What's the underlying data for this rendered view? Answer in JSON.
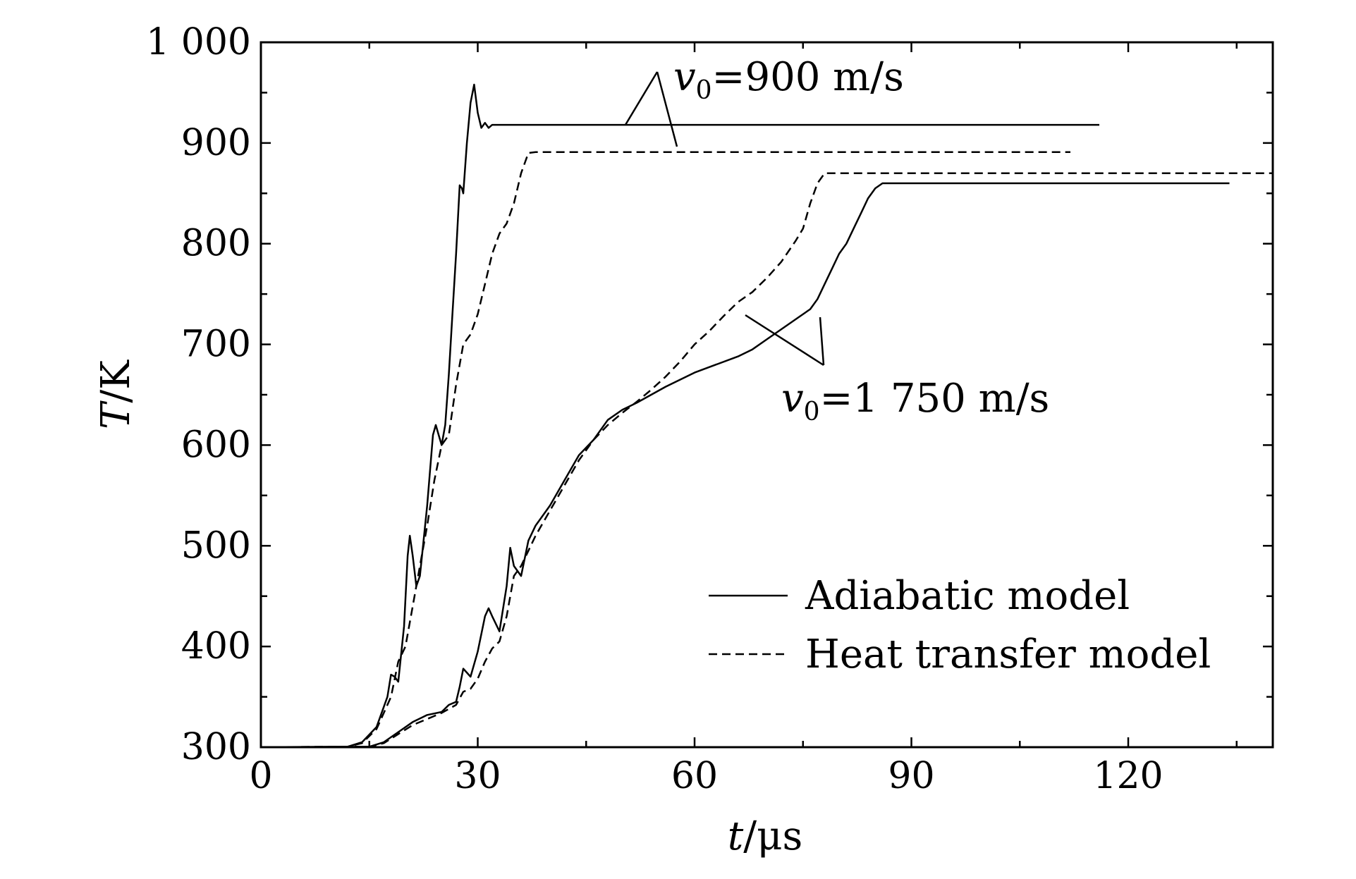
{
  "chart_data": {
    "type": "line",
    "xlabel": {
      "var": "t",
      "unit": "μs"
    },
    "ylabel": {
      "var": "T",
      "unit": "K"
    },
    "xlim": [
      0,
      140
    ],
    "ylim": [
      300,
      1000
    ],
    "x_ticks": [
      {
        "value": 0,
        "label": "0"
      },
      {
        "value": 30,
        "label": "30"
      },
      {
        "value": 60,
        "label": "60"
      },
      {
        "value": 90,
        "label": "90"
      },
      {
        "value": 120,
        "label": "120"
      }
    ],
    "y_ticks": [
      {
        "value": 300,
        "label": "300"
      },
      {
        "value": 400,
        "label": "400"
      },
      {
        "value": 500,
        "label": "500"
      },
      {
        "value": 600,
        "label": "600"
      },
      {
        "value": 700,
        "label": "700"
      },
      {
        "value": 800,
        "label": "800"
      },
      {
        "value": 900,
        "label": "900"
      },
      {
        "value": 1000,
        "label": "1 000"
      }
    ],
    "grid": false,
    "legend": {
      "position": "bottom-right",
      "entries": [
        {
          "label": "Adiabatic model",
          "style": "solid"
        },
        {
          "label": "Heat transfer model",
          "style": "dashed"
        }
      ]
    },
    "annotations": [
      {
        "var": "v",
        "sub": "0",
        "text": "=900 m/s"
      },
      {
        "var": "v",
        "sub": "0",
        "text": "=1 750 m/s"
      }
    ],
    "series": [
      {
        "group": 0,
        "style": "solid",
        "points": [
          [
            0,
            300
          ],
          [
            12,
            300.5
          ],
          [
            14,
            305
          ],
          [
            16,
            320
          ],
          [
            17.5,
            350
          ],
          [
            18,
            372
          ],
          [
            18.5,
            370
          ],
          [
            19,
            365
          ],
          [
            19.8,
            420
          ],
          [
            20.3,
            490
          ],
          [
            20.6,
            510
          ],
          [
            21,
            490
          ],
          [
            21.5,
            460
          ],
          [
            22,
            470
          ],
          [
            23,
            540
          ],
          [
            23.8,
            610
          ],
          [
            24.2,
            620
          ],
          [
            24.6,
            610
          ],
          [
            25,
            600
          ],
          [
            25.5,
            620
          ],
          [
            26,
            670
          ],
          [
            26.5,
            730
          ],
          [
            27,
            790
          ],
          [
            27.5,
            858
          ],
          [
            27.8,
            855
          ],
          [
            28,
            850
          ],
          [
            28.5,
            900
          ],
          [
            29,
            940
          ],
          [
            29.5,
            958
          ],
          [
            30,
            930
          ],
          [
            30.5,
            915
          ],
          [
            31,
            920
          ],
          [
            31.5,
            915
          ],
          [
            32,
            918
          ],
          [
            40,
            918
          ],
          [
            116,
            918
          ]
        ]
      },
      {
        "group": 0,
        "style": "dashed",
        "points": [
          [
            0,
            300
          ],
          [
            12,
            300.5
          ],
          [
            14,
            304
          ],
          [
            16,
            318
          ],
          [
            18,
            350
          ],
          [
            19,
            385
          ],
          [
            20,
            400
          ],
          [
            21,
            440
          ],
          [
            22,
            480
          ],
          [
            23,
            520
          ],
          [
            24,
            565
          ],
          [
            25,
            600
          ],
          [
            26,
            610
          ],
          [
            27,
            660
          ],
          [
            28,
            700
          ],
          [
            29,
            710
          ],
          [
            30,
            730
          ],
          [
            31,
            760
          ],
          [
            32,
            790
          ],
          [
            33,
            810
          ],
          [
            34,
            820
          ],
          [
            35,
            840
          ],
          [
            36,
            870
          ],
          [
            37,
            890
          ],
          [
            38,
            891
          ],
          [
            40,
            891
          ],
          [
            112,
            891
          ]
        ]
      },
      {
        "group": 1,
        "style": "solid",
        "points": [
          [
            0,
            300
          ],
          [
            15,
            300.5
          ],
          [
            17,
            305
          ],
          [
            19,
            315
          ],
          [
            21,
            325
          ],
          [
            23,
            332
          ],
          [
            25,
            335
          ],
          [
            26,
            342
          ],
          [
            27,
            345
          ],
          [
            27.5,
            360
          ],
          [
            28,
            378
          ],
          [
            29,
            370
          ],
          [
            30,
            395
          ],
          [
            31,
            430
          ],
          [
            31.5,
            438
          ],
          [
            32,
            430
          ],
          [
            33,
            415
          ],
          [
            34,
            460
          ],
          [
            34.5,
            498
          ],
          [
            35,
            480
          ],
          [
            36,
            470
          ],
          [
            37,
            505
          ],
          [
            38,
            520
          ],
          [
            40,
            540
          ],
          [
            42,
            565
          ],
          [
            44,
            590
          ],
          [
            46,
            605
          ],
          [
            48,
            625
          ],
          [
            50,
            635
          ],
          [
            52,
            642
          ],
          [
            54,
            650
          ],
          [
            56,
            658
          ],
          [
            58,
            665
          ],
          [
            60,
            672
          ],
          [
            63,
            680
          ],
          [
            66,
            688
          ],
          [
            68,
            695
          ],
          [
            70,
            705
          ],
          [
            72,
            715
          ],
          [
            74,
            725
          ],
          [
            76,
            735
          ],
          [
            77,
            745
          ],
          [
            78,
            760
          ],
          [
            79,
            775
          ],
          [
            80,
            790
          ],
          [
            81,
            800
          ],
          [
            82,
            815
          ],
          [
            83,
            830
          ],
          [
            84,
            845
          ],
          [
            85,
            855
          ],
          [
            86,
            860
          ],
          [
            88,
            860
          ],
          [
            134,
            860
          ]
        ]
      },
      {
        "group": 1,
        "style": "dashed",
        "points": [
          [
            0,
            300
          ],
          [
            15,
            300.5
          ],
          [
            17,
            304
          ],
          [
            19,
            313
          ],
          [
            21,
            322
          ],
          [
            23,
            328
          ],
          [
            25,
            334
          ],
          [
            27,
            342
          ],
          [
            28,
            355
          ],
          [
            29,
            358
          ],
          [
            30,
            368
          ],
          [
            31,
            385
          ],
          [
            32,
            398
          ],
          [
            33,
            405
          ],
          [
            34,
            430
          ],
          [
            35,
            470
          ],
          [
            36,
            480
          ],
          [
            37,
            495
          ],
          [
            38,
            510
          ],
          [
            40,
            535
          ],
          [
            42,
            560
          ],
          [
            44,
            585
          ],
          [
            46,
            605
          ],
          [
            48,
            620
          ],
          [
            50,
            632
          ],
          [
            52,
            643
          ],
          [
            54,
            655
          ],
          [
            56,
            668
          ],
          [
            58,
            683
          ],
          [
            60,
            700
          ],
          [
            62,
            713
          ],
          [
            64,
            728
          ],
          [
            66,
            742
          ],
          [
            68,
            752
          ],
          [
            70,
            766
          ],
          [
            72,
            782
          ],
          [
            74,
            803
          ],
          [
            75,
            815
          ],
          [
            76,
            840
          ],
          [
            77,
            860
          ],
          [
            78,
            870
          ],
          [
            90,
            870
          ],
          [
            140,
            870
          ]
        ]
      }
    ]
  }
}
